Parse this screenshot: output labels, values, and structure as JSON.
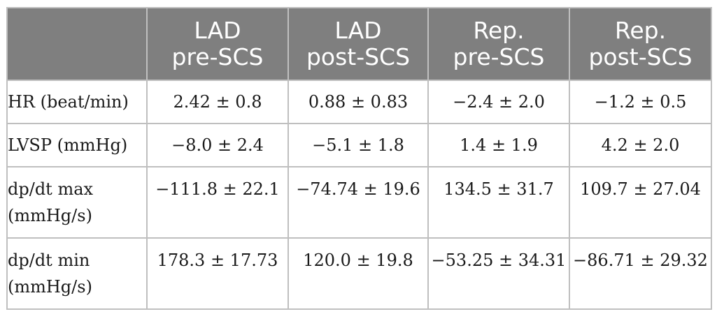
{
  "table": {
    "columns": [
      {
        "line1": "",
        "line2": ""
      },
      {
        "line1": "LAD",
        "line2": "pre-SCS"
      },
      {
        "line1": "LAD",
        "line2": "post-SCS"
      },
      {
        "line1": "Rep.",
        "line2": "pre-SCS"
      },
      {
        "line1": "Rep.",
        "line2": "post-SCS"
      }
    ],
    "rows": [
      {
        "label_line1": "HR (beat/min)",
        "label_line2": "",
        "values": [
          "2.42 ± 0.8",
          "0.88 ± 0.83",
          "−2.4 ± 2.0",
          "−1.2 ± 0.5"
        ]
      },
      {
        "label_line1": "LVSP (mmHg)",
        "label_line2": "",
        "values": [
          "−8.0 ± 2.4",
          "−5.1 ± 1.8",
          "1.4 ± 1.9",
          "4.2 ± 2.0"
        ]
      },
      {
        "label_line1": "dp/dt max",
        "label_line2": "(mmHg/s)",
        "values": [
          "−111.8 ± 22.1",
          "−74.74 ± 19.6",
          "134.5 ± 31.7",
          "109.7 ± 27.04"
        ]
      },
      {
        "label_line1": "dp/dt min",
        "label_line2": "(mmHg/s)",
        "values": [
          "178.3 ± 17.73",
          "120.0 ± 19.8",
          "−53.25 ± 34.31",
          "−86.71 ± 29.32"
        ]
      }
    ]
  }
}
